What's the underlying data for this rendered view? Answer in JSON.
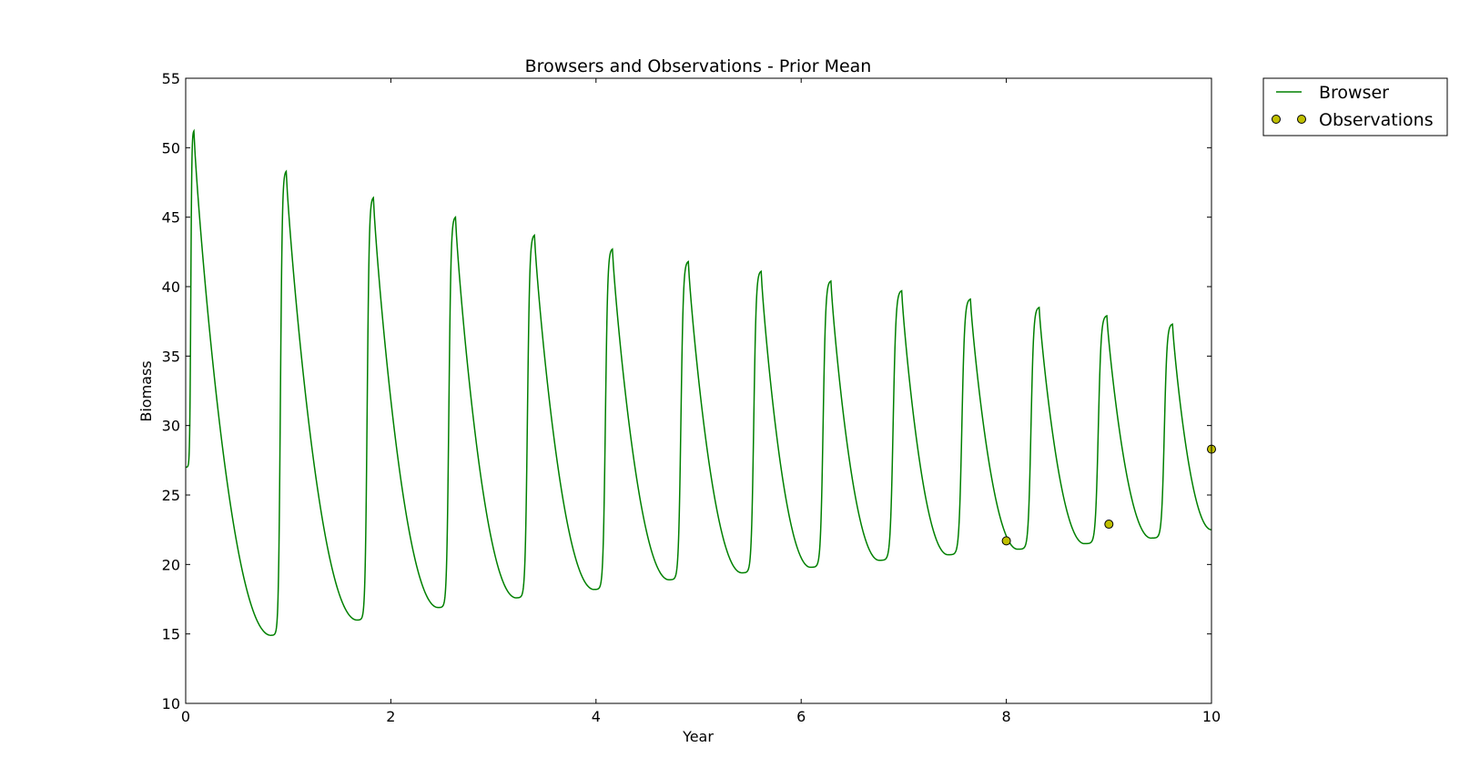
{
  "chart_data": {
    "type": "line",
    "title": "Browsers and Observations - Prior Mean",
    "xlabel": "Year",
    "ylabel": "Biomass",
    "xlim": [
      0,
      10
    ],
    "ylim": [
      10,
      55
    ],
    "xticks": [
      "0",
      "2",
      "4",
      "6",
      "8",
      "10"
    ],
    "yticks": [
      "10",
      "15",
      "20",
      "25",
      "30",
      "35",
      "40",
      "45",
      "50",
      "55"
    ],
    "grid": false,
    "legend_position": "outside-top-right",
    "series": [
      {
        "name": "Browser",
        "kind": "line",
        "color": "#008000",
        "x": [
          0,
          0.08,
          0.83,
          0.98,
          1.67,
          1.83,
          2.46,
          2.63,
          3.22,
          3.4,
          3.98,
          4.16,
          4.71,
          4.9,
          5.42,
          5.61,
          6.09,
          6.29,
          6.76,
          6.98,
          7.43,
          7.65,
          8.11,
          8.32,
          8.76,
          8.98,
          9.41,
          9.62,
          10
        ],
        "y": [
          27,
          51.2,
          14.9,
          48.3,
          16.0,
          46.4,
          16.9,
          45.0,
          17.6,
          43.7,
          18.2,
          42.7,
          18.9,
          41.8,
          19.4,
          41.1,
          19.8,
          40.4,
          20.3,
          39.7,
          20.7,
          39.1,
          21.1,
          38.5,
          21.5,
          37.9,
          21.9,
          37.3,
          22.5
        ]
      },
      {
        "name": "Observations",
        "kind": "scatter",
        "color": "#BFBF00",
        "x": [
          8,
          9,
          10
        ],
        "y": [
          21.7,
          22.9,
          28.3
        ]
      }
    ]
  }
}
